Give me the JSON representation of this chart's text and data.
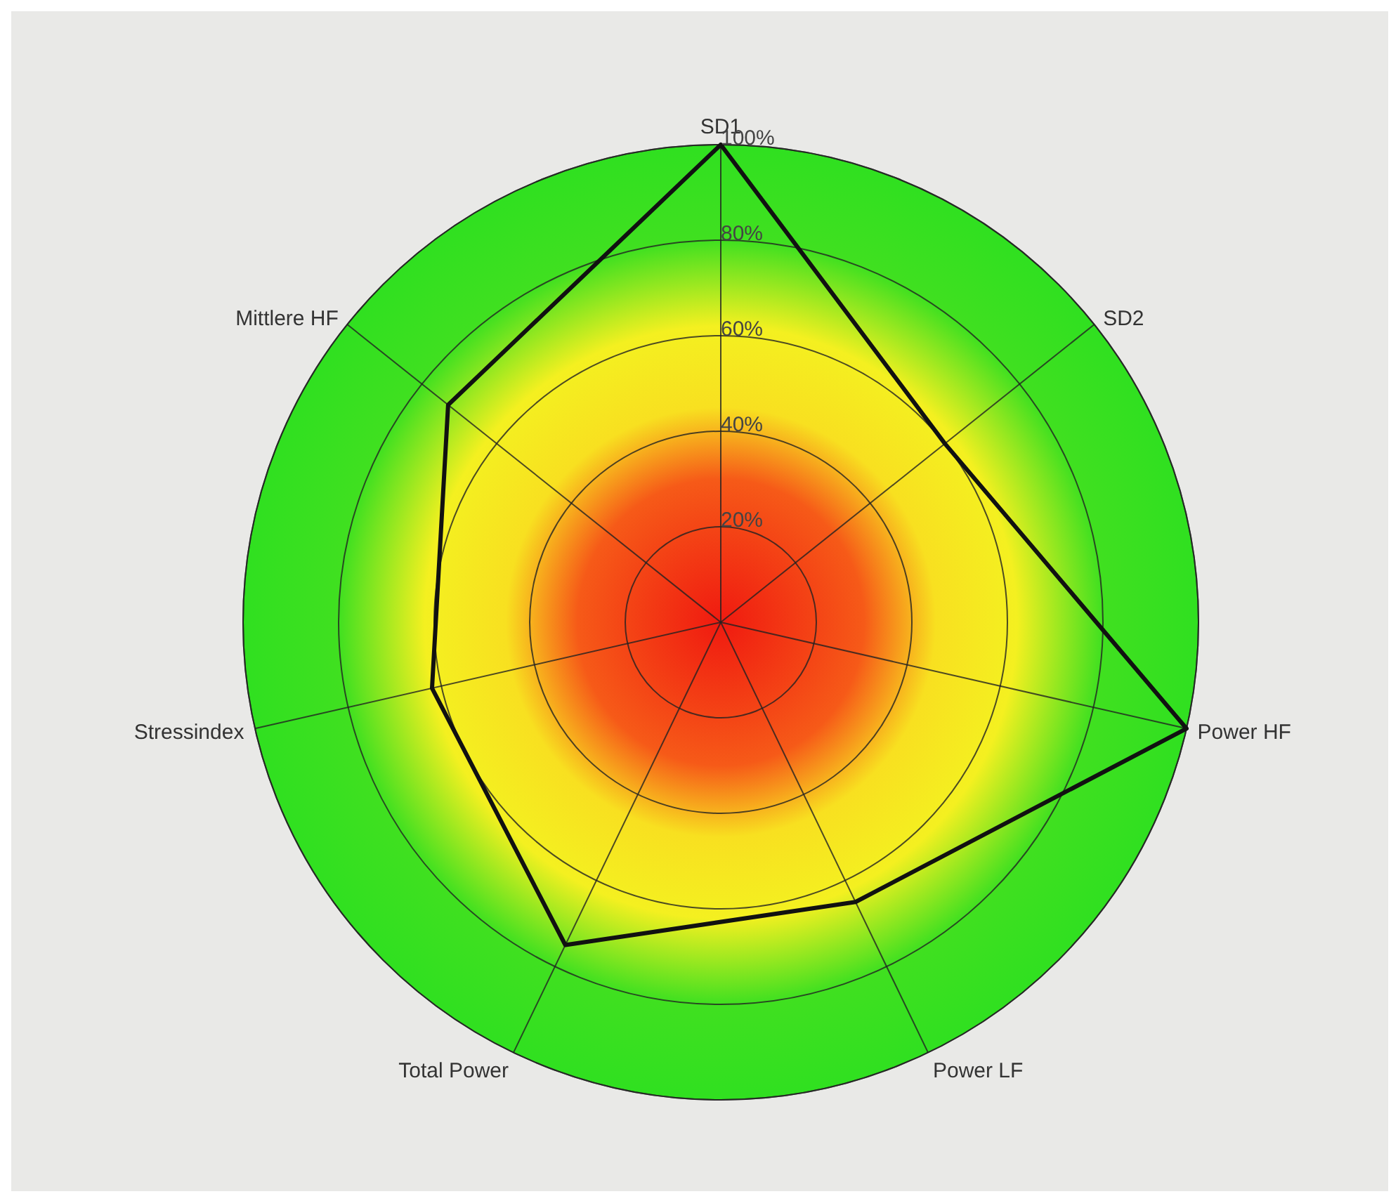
{
  "chart_data": {
    "type": "radar",
    "categories": [
      "SD1",
      "SD2",
      "Power HF",
      "Power LF",
      "Total Power",
      "Stressindex",
      "Mittlere HF"
    ],
    "series": [
      {
        "color": "#111111",
        "values": [
          100,
          60,
          100,
          65,
          75,
          62,
          73
        ]
      }
    ],
    "ylim": [
      0,
      100
    ],
    "yticks": [
      {
        "value": 20,
        "label": "20%"
      },
      {
        "value": 40,
        "label": "40%"
      },
      {
        "value": 60,
        "label": "60%"
      },
      {
        "value": 80,
        "label": "80%"
      },
      {
        "value": 100,
        "label": "100%"
      }
    ],
    "grid": true,
    "marker": "none"
  }
}
